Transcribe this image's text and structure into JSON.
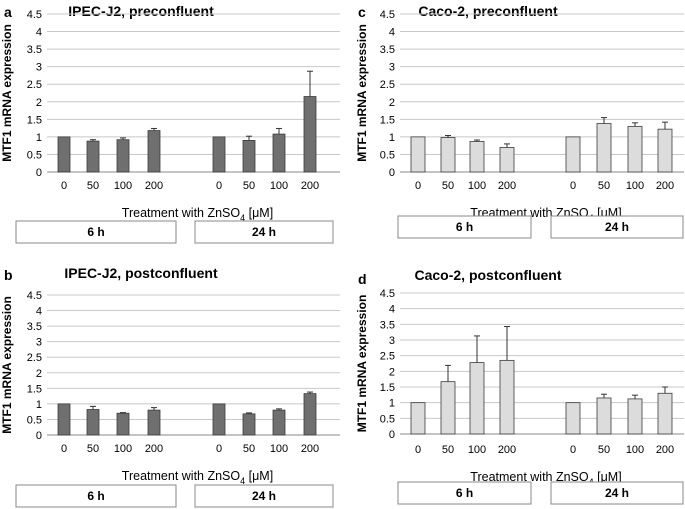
{
  "chart_data": [
    {
      "id": "a",
      "panel_letter": "a",
      "type": "bar",
      "title": "IPEC-J2, preconfluent",
      "ylabel": "MTF1 mRNA  expression",
      "xlabel_prefix": "Treatment with ZnSO",
      "xlabel_sub": "4",
      "xlabel_suffix": " [μM]",
      "ylim": [
        0,
        4.5
      ],
      "y_ticks": [
        "0",
        "0.5",
        "1",
        "1.5",
        "2",
        "2.5",
        "3",
        "3.5",
        "4",
        "4.5"
      ],
      "categories": [
        "0",
        "50",
        "100",
        "200",
        "0",
        "50",
        "100",
        "200"
      ],
      "values": [
        1.0,
        0.88,
        0.92,
        1.18,
        1.0,
        0.9,
        1.08,
        2.15
      ],
      "errors": [
        0,
        0.04,
        0.05,
        0.06,
        0,
        0.12,
        0.16,
        0.72
      ],
      "bar_color": "#6f6f6f",
      "groups": [
        "6 h",
        "24 h"
      ]
    },
    {
      "id": "b",
      "panel_letter": "b",
      "type": "bar",
      "title": "IPEC-J2, postconfluent",
      "ylabel": "MTF1 mRNA  expression",
      "xlabel_prefix": "Treatment with ZnSO",
      "xlabel_sub": "4",
      "xlabel_suffix": " [μM]",
      "ylim": [
        0,
        4.5
      ],
      "y_ticks": [
        "0",
        "0.5",
        "1",
        "1.5",
        "2",
        "2.5",
        "3",
        "3.5",
        "4",
        "4.5"
      ],
      "categories": [
        "0",
        "50",
        "100",
        "200",
        "0",
        "50",
        "100",
        "200"
      ],
      "values": [
        1.0,
        0.82,
        0.7,
        0.8,
        1.0,
        0.68,
        0.8,
        1.33
      ],
      "errors": [
        0,
        0.1,
        0.02,
        0.08,
        0,
        0.03,
        0.04,
        0.05
      ],
      "bar_color": "#6f6f6f",
      "groups": [
        "6 h",
        "24 h"
      ]
    },
    {
      "id": "c",
      "panel_letter": "c",
      "type": "bar",
      "title": "Caco-2, preconfluent",
      "ylabel": "MTF1 mRNA  expression",
      "xlabel_prefix": "Treatment with ZnSO",
      "xlabel_sub": "4",
      "xlabel_suffix": " [μM]",
      "ylim": [
        0,
        4.5
      ],
      "y_ticks": [
        "0",
        "0.5",
        "1",
        "1.5",
        "2",
        "2.5",
        "3",
        "3.5",
        "4",
        "4.5"
      ],
      "categories": [
        "0",
        "50",
        "100",
        "200",
        "0",
        "50",
        "100",
        "200"
      ],
      "values": [
        1.0,
        0.98,
        0.87,
        0.7,
        1.0,
        1.38,
        1.3,
        1.22
      ],
      "errors": [
        0,
        0.06,
        0.04,
        0.1,
        0,
        0.17,
        0.1,
        0.2
      ],
      "bar_color": "#dcdcdc",
      "groups": [
        "6 h",
        "24 h"
      ]
    },
    {
      "id": "d",
      "panel_letter": "d",
      "type": "bar",
      "title": "Caco-2, postconfluent",
      "ylabel": "MTF1 mRNA expression",
      "xlabel_prefix": "Treatment with ZnSO",
      "xlabel_sub": "4",
      "xlabel_suffix": " [μM]",
      "ylim": [
        0,
        4.5
      ],
      "y_ticks": [
        "0",
        "0.5",
        "1",
        "1.5",
        "2",
        "2.5",
        "3",
        "3.5",
        "4",
        "4.5"
      ],
      "categories": [
        "0",
        "50",
        "100",
        "200",
        "0",
        "50",
        "100",
        "200"
      ],
      "values": [
        1.0,
        1.67,
        2.28,
        2.35,
        1.0,
        1.15,
        1.12,
        1.3
      ],
      "errors": [
        0,
        0.52,
        0.85,
        1.08,
        0,
        0.12,
        0.12,
        0.2
      ],
      "bar_color": "#dcdcdc",
      "groups": [
        "6 h",
        "24 h"
      ]
    }
  ]
}
